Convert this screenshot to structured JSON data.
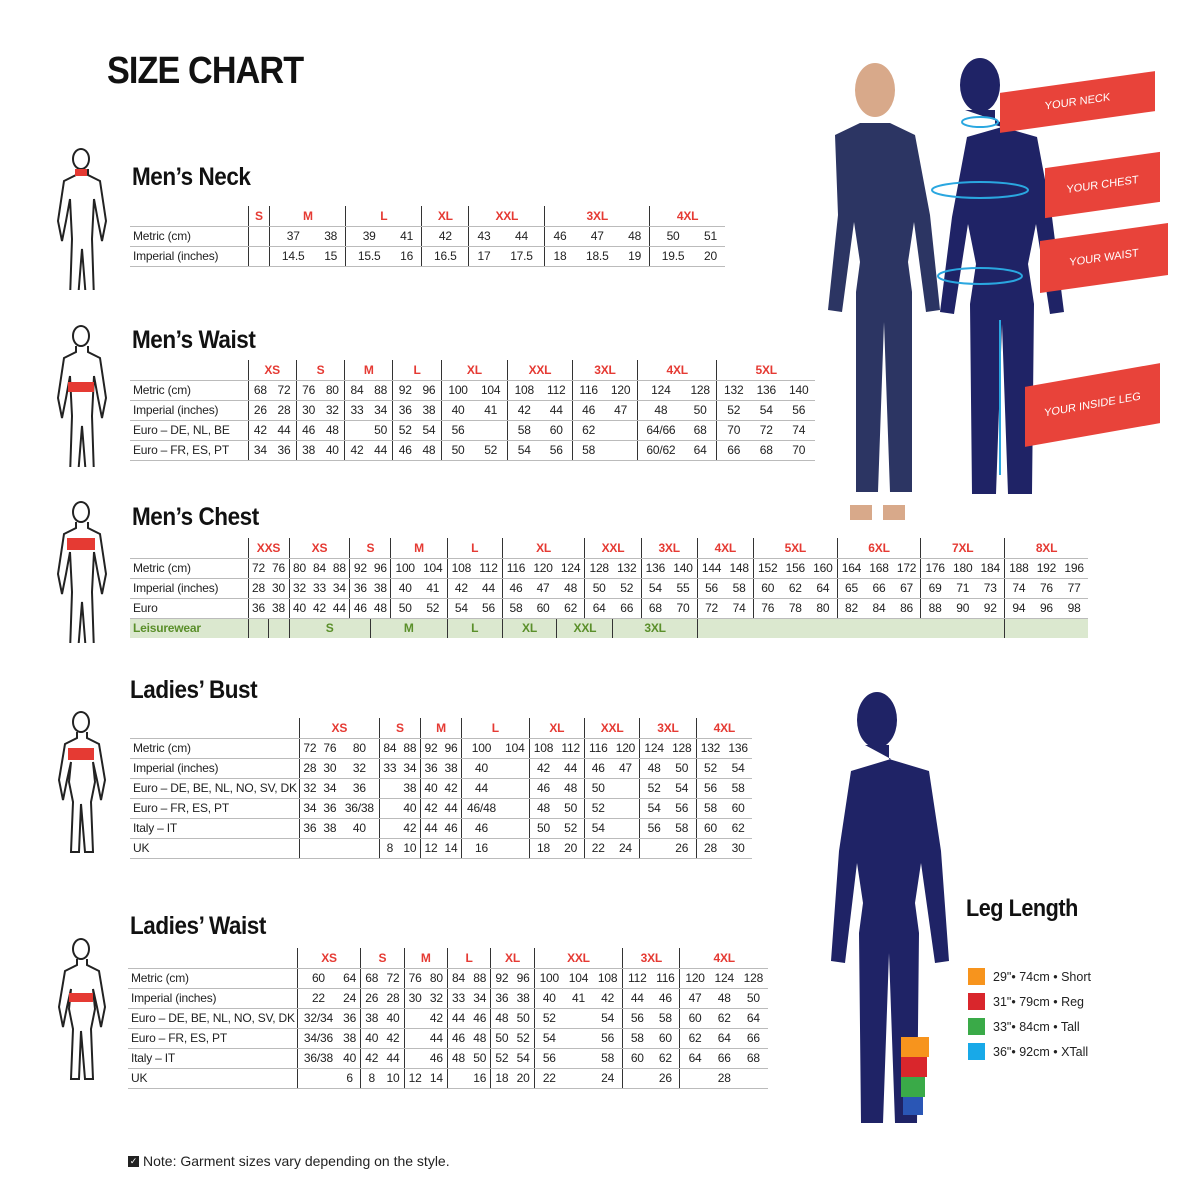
{
  "title": "SIZE CHART",
  "colors": {
    "size_label": "#e53a33",
    "silhouette": "#1f2366",
    "tag": "#e8433a",
    "leisurewear_bg": "#dbe8cf",
    "leisurewear_text": "#5a8f2a"
  },
  "tables": [
    {
      "key": "mens_neck",
      "heading": "Men’s Neck",
      "sizes": [
        {
          "label": "S",
          "cols": 1
        },
        {
          "label": "M",
          "cols": 2
        },
        {
          "label": "L",
          "cols": 2
        },
        {
          "label": "XL",
          "cols": 1
        },
        {
          "label": "XXL",
          "cols": 2
        },
        {
          "label": "3XL",
          "cols": 3
        },
        {
          "label": "4XL",
          "cols": 2
        }
      ],
      "rows": [
        {
          "label": "Metric (cm)",
          "cells": [
            "",
            "37",
            "38",
            "39",
            "41",
            "42",
            "43",
            "44",
            "46",
            "47",
            "48",
            "50",
            "51"
          ]
        },
        {
          "label": "Imperial (inches)",
          "cells": [
            "",
            "14.5",
            "15",
            "15.5",
            "16",
            "16.5",
            "17",
            "17.5",
            "18",
            "18.5",
            "19",
            "19.5",
            "20"
          ]
        }
      ]
    },
    {
      "key": "mens_waist",
      "heading": "Men’s Waist",
      "sizes": [
        {
          "label": "XS",
          "cols": 2
        },
        {
          "label": "S",
          "cols": 2
        },
        {
          "label": "M",
          "cols": 2
        },
        {
          "label": "L",
          "cols": 2
        },
        {
          "label": "XL",
          "cols": 2
        },
        {
          "label": "XXL",
          "cols": 2
        },
        {
          "label": "3XL",
          "cols": 2
        },
        {
          "label": "4XL",
          "cols": 2
        },
        {
          "label": "5XL",
          "cols": 3
        }
      ],
      "rows": [
        {
          "label": "Metric (cm)",
          "cells": [
            "68",
            "72",
            "76",
            "80",
            "84",
            "88",
            "92",
            "96",
            "100",
            "104",
            "108",
            "112",
            "116",
            "120",
            "124",
            "128",
            "132",
            "136",
            "140"
          ]
        },
        {
          "label": "Imperial (inches)",
          "cells": [
            "26",
            "28",
            "30",
            "32",
            "33",
            "34",
            "36",
            "38",
            "40",
            "41",
            "42",
            "44",
            "46",
            "47",
            "48",
            "50",
            "52",
            "54",
            "56"
          ]
        },
        {
          "label": "Euro – DE, NL, BE",
          "cells": [
            "42",
            "44",
            "46",
            "48",
            "",
            "50",
            "52",
            "54",
            "56",
            "",
            "58",
            "60",
            "62",
            "",
            "64/66",
            "68",
            "70",
            "72",
            "74"
          ]
        },
        {
          "label": "Euro – FR, ES, PT",
          "cells": [
            "34",
            "36",
            "38",
            "40",
            "42",
            "44",
            "46",
            "48",
            "50",
            "52",
            "54",
            "56",
            "58",
            "",
            "60/62",
            "64",
            "66",
            "68",
            "70"
          ]
        }
      ]
    },
    {
      "key": "mens_chest",
      "heading": "Men’s Chest",
      "sizes": [
        {
          "label": "XXS",
          "cols": 2
        },
        {
          "label": "XS",
          "cols": 3
        },
        {
          "label": "S",
          "cols": 2
        },
        {
          "label": "M",
          "cols": 2
        },
        {
          "label": "L",
          "cols": 2
        },
        {
          "label": "XL",
          "cols": 3
        },
        {
          "label": "XXL",
          "cols": 2
        },
        {
          "label": "3XL",
          "cols": 2
        },
        {
          "label": "4XL",
          "cols": 2
        },
        {
          "label": "5XL",
          "cols": 3
        },
        {
          "label": "6XL",
          "cols": 3
        },
        {
          "label": "7XL",
          "cols": 3
        },
        {
          "label": "8XL",
          "cols": 3
        }
      ],
      "rows": [
        {
          "label": "Metric (cm)",
          "cells": [
            "72",
            "76",
            "80",
            "84",
            "88",
            "92",
            "96",
            "100",
            "104",
            "108",
            "112",
            "116",
            "120",
            "124",
            "128",
            "132",
            "136",
            "140",
            "144",
            "148",
            "152",
            "156",
            "160",
            "164",
            "168",
            "172",
            "176",
            "180",
            "184",
            "188",
            "192",
            "196"
          ]
        },
        {
          "label": "Imperial (inches)",
          "cells": [
            "28",
            "30",
            "32",
            "33",
            "34",
            "36",
            "38",
            "40",
            "41",
            "42",
            "44",
            "46",
            "47",
            "48",
            "50",
            "52",
            "54",
            "55",
            "56",
            "58",
            "60",
            "62",
            "64",
            "65",
            "66",
            "67",
            "69",
            "71",
            "73",
            "74",
            "76",
            "77"
          ]
        },
        {
          "label": "Euro",
          "cells": [
            "36",
            "38",
            "40",
            "42",
            "44",
            "46",
            "48",
            "50",
            "52",
            "54",
            "56",
            "58",
            "60",
            "62",
            "64",
            "66",
            "68",
            "70",
            "72",
            "74",
            "76",
            "78",
            "80",
            "82",
            "84",
            "86",
            "88",
            "90",
            "92",
            "94",
            "96",
            "98"
          ]
        }
      ],
      "leisurewear": {
        "label": "Leisurewear",
        "spans": [
          {
            "text": "",
            "span": 1
          },
          {
            "text": "",
            "span": 1
          },
          {
            "text": "S",
            "span": 4
          },
          {
            "text": "M",
            "span": 3
          },
          {
            "text": "L",
            "span": 2
          },
          {
            "text": "XL",
            "span": 2
          },
          {
            "text": "XXL",
            "span": 2
          },
          {
            "text": "3XL",
            "span": 3
          },
          {
            "text": "",
            "span": 11
          },
          {
            "text": "",
            "span": 3
          }
        ]
      }
    },
    {
      "key": "ladies_bust",
      "heading": "Ladies’ Bust",
      "sizes": [
        {
          "label": "XS",
          "cols": 3
        },
        {
          "label": "S",
          "cols": 2
        },
        {
          "label": "M",
          "cols": 2
        },
        {
          "label": "L",
          "cols": 2
        },
        {
          "label": "XL",
          "cols": 2
        },
        {
          "label": "XXL",
          "cols": 2
        },
        {
          "label": "3XL",
          "cols": 2
        },
        {
          "label": "4XL",
          "cols": 2
        }
      ],
      "rows": [
        {
          "label": "Metric (cm)",
          "cells": [
            "72",
            "76",
            "80",
            "84",
            "88",
            "92",
            "96",
            "100",
            "104",
            "108",
            "112",
            "116",
            "120",
            "124",
            "128",
            "132",
            "136"
          ]
        },
        {
          "label": "Imperial (inches)",
          "cells": [
            "28",
            "30",
            "32",
            "33",
            "34",
            "36",
            "38",
            "40",
            "",
            "42",
            "44",
            "46",
            "47",
            "48",
            "50",
            "52",
            "54"
          ]
        },
        {
          "label": "Euro –  DE, BE, NL, NO, SV, DK",
          "cells": [
            "32",
            "34",
            "36",
            "",
            "38",
            "40",
            "42",
            "44",
            "",
            "46",
            "48",
            "50",
            "",
            "52",
            "54",
            "56",
            "58"
          ]
        },
        {
          "label": "Euro – FR, ES, PT",
          "cells": [
            "34",
            "36",
            "36/38",
            "",
            "40",
            "42",
            "44",
            "46/48",
            "",
            "48",
            "50",
            "52",
            "",
            "54",
            "56",
            "58",
            "60"
          ]
        },
        {
          "label": "Italy – IT",
          "cells": [
            "36",
            "38",
            "40",
            "",
            "42",
            "44",
            "46",
            "46",
            "",
            "50",
            "52",
            "54",
            "",
            "56",
            "58",
            "60",
            "62"
          ]
        },
        {
          "label": "UK",
          "cells": [
            "",
            "",
            "",
            "8",
            "10",
            "12",
            "14",
            "16",
            "",
            "18",
            "20",
            "22",
            "24",
            "",
            "26",
            "28",
            "30"
          ]
        }
      ]
    },
    {
      "key": "ladies_waist",
      "heading": "Ladies’ Waist",
      "sizes": [
        {
          "label": "XS",
          "cols": 2
        },
        {
          "label": "S",
          "cols": 2
        },
        {
          "label": "M",
          "cols": 2
        },
        {
          "label": "L",
          "cols": 2
        },
        {
          "label": "XL",
          "cols": 2
        },
        {
          "label": "XXL",
          "cols": 3
        },
        {
          "label": "3XL",
          "cols": 2
        },
        {
          "label": "4XL",
          "cols": 3
        }
      ],
      "rows": [
        {
          "label": "Metric (cm)",
          "cells": [
            "60",
            "64",
            "68",
            "72",
            "76",
            "80",
            "84",
            "88",
            "92",
            "96",
            "100",
            "104",
            "108",
            "112",
            "116",
            "120",
            "124",
            "128"
          ]
        },
        {
          "label": "Imperial (inches)",
          "cells": [
            "22",
            "24",
            "26",
            "28",
            "30",
            "32",
            "33",
            "34",
            "36",
            "38",
            "40",
            "41",
            "42",
            "44",
            "46",
            "47",
            "48",
            "50"
          ]
        },
        {
          "label": "Euro – DE, BE, NL, NO, SV, DK",
          "cells": [
            "32/34",
            "36",
            "38",
            "40",
            "",
            "42",
            "44",
            "46",
            "48",
            "50",
            "52",
            "",
            "54",
            "56",
            "58",
            "60",
            "62",
            "64"
          ]
        },
        {
          "label": "Euro – FR, ES, PT",
          "cells": [
            "34/36",
            "38",
            "40",
            "42",
            "",
            "44",
            "46",
            "48",
            "50",
            "52",
            "54",
            "",
            "56",
            "58",
            "60",
            "62",
            "64",
            "66"
          ]
        },
        {
          "label": "Italy – IT",
          "cells": [
            "36/38",
            "40",
            "42",
            "44",
            "",
            "46",
            "48",
            "50",
            "52",
            "54",
            "56",
            "",
            "58",
            "60",
            "62",
            "64",
            "66",
            "68"
          ]
        },
        {
          "label": "UK",
          "cells": [
            "",
            "6",
            "8",
            "10",
            "12",
            "14",
            "",
            "16",
            "18",
            "20",
            "22",
            "",
            "24",
            "",
            "26",
            "",
            "28",
            ""
          ]
        }
      ]
    }
  ],
  "measure_tags": {
    "neck": "YOUR NECK",
    "chest": "YOUR CHEST",
    "waist": "YOUR WAIST",
    "inside_leg": "YOUR INSIDE LEG"
  },
  "leg_length": {
    "heading": "Leg Length",
    "items": [
      {
        "text": "29\"• 74cm • Short",
        "color": "#f7941d"
      },
      {
        "text": "31\"• 79cm • Reg",
        "color": "#d9262c"
      },
      {
        "text": "33\"• 84cm • Tall",
        "color": "#3aaa48"
      },
      {
        "text": "36\"• 92cm • XTall",
        "color": "#18a9e8"
      }
    ]
  },
  "note": "Note: Garment sizes vary depending on the style."
}
